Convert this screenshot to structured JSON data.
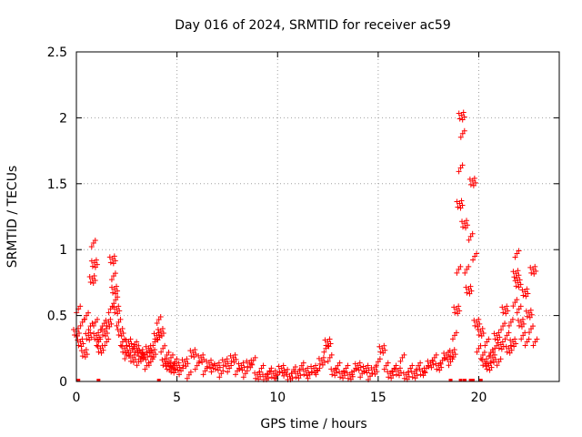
{
  "chart_data": {
    "type": "scatter",
    "title": "Day 016 of 2024, SRMTID for receiver ac59",
    "xlabel": "GPS time / hours",
    "ylabel": "SRMTID / TECUs",
    "xlim": [
      0,
      24
    ],
    "ylim": [
      0,
      2.5
    ],
    "x_ticks": [
      0,
      5,
      10,
      15,
      20
    ],
    "x_tick_labels": [
      "0",
      "5",
      "10",
      "15",
      "20"
    ],
    "y_ticks": [
      0,
      0.5,
      1,
      1.5,
      2,
      2.5
    ],
    "y_tick_labels": [
      "0",
      "0.5",
      "1",
      "1.5",
      "2",
      "2.5"
    ],
    "grid": true,
    "marker": "plus",
    "color": "#ff0000",
    "series": [
      {
        "name": "SRMTID",
        "x": [
          0.0,
          0.1,
          0.2,
          0.3,
          0.4,
          0.5,
          0.6,
          0.7,
          0.8,
          0.85,
          0.9,
          0.95,
          1.0,
          1.1,
          1.2,
          1.3,
          1.4,
          1.5,
          1.6,
          1.7,
          1.8,
          1.85,
          1.9,
          1.95,
          2.0,
          2.1,
          2.2,
          2.3,
          2.4,
          2.5,
          2.6,
          2.7,
          2.8,
          2.9,
          3.0,
          3.1,
          3.2,
          3.3,
          3.4,
          3.5,
          3.6,
          3.7,
          3.8,
          3.9,
          4.0,
          4.1,
          4.2,
          4.3,
          4.4,
          4.5,
          4.6,
          4.7,
          4.8,
          4.9,
          5.0,
          5.2,
          5.4,
          5.6,
          5.8,
          6.0,
          6.2,
          6.4,
          6.6,
          6.8,
          7.0,
          7.2,
          7.4,
          7.6,
          7.8,
          8.0,
          8.2,
          8.4,
          8.6,
          8.8,
          9.0,
          9.2,
          9.4,
          9.6,
          9.8,
          10.0,
          10.2,
          10.4,
          10.6,
          10.8,
          11.0,
          11.2,
          11.4,
          11.6,
          11.8,
          12.0,
          12.2,
          12.4,
          12.5,
          12.6,
          12.8,
          13.0,
          13.2,
          13.4,
          13.6,
          13.8,
          14.0,
          14.2,
          14.4,
          14.6,
          14.8,
          15.0,
          15.2,
          15.4,
          15.6,
          15.8,
          16.0,
          16.2,
          16.4,
          16.6,
          16.8,
          17.0,
          17.2,
          17.4,
          17.6,
          17.8,
          18.0,
          18.2,
          18.4,
          18.6,
          18.7,
          18.8,
          18.9,
          19.0,
          19.05,
          19.1,
          19.15,
          19.2,
          19.3,
          19.4,
          19.5,
          19.6,
          19.7,
          19.8,
          19.9,
          20.0,
          20.1,
          20.2,
          20.3,
          20.4,
          20.5,
          20.6,
          20.7,
          20.8,
          20.9,
          21.0,
          21.1,
          21.2,
          21.3,
          21.4,
          21.5,
          21.6,
          21.7,
          21.8,
          21.85,
          21.9,
          21.95,
          22.0,
          22.1,
          22.2,
          22.3,
          22.4,
          22.5,
          22.6,
          22.7,
          22.8
        ],
        "y": [
          0.38,
          0.55,
          0.3,
          0.45,
          0.22,
          0.5,
          0.35,
          0.42,
          0.78,
          1.05,
          0.9,
          0.45,
          0.35,
          0.3,
          0.25,
          0.42,
          0.38,
          0.3,
          0.45,
          0.55,
          0.93,
          0.8,
          0.7,
          0.62,
          0.55,
          0.45,
          0.38,
          0.3,
          0.25,
          0.2,
          0.3,
          0.22,
          0.18,
          0.28,
          0.25,
          0.15,
          0.22,
          0.18,
          0.2,
          0.12,
          0.25,
          0.15,
          0.22,
          0.3,
          0.35,
          0.47,
          0.38,
          0.25,
          0.15,
          0.2,
          0.12,
          0.18,
          0.1,
          0.15,
          0.12,
          0.08,
          0.15,
          0.05,
          0.22,
          0.12,
          0.18,
          0.08,
          0.14,
          0.1,
          0.12,
          0.06,
          0.15,
          0.1,
          0.18,
          0.08,
          0.12,
          0.06,
          0.14,
          0.16,
          0.05,
          0.1,
          0.04,
          0.08,
          0.06,
          0.05,
          0.1,
          0.07,
          0.04,
          0.09,
          0.06,
          0.12,
          0.08,
          0.05,
          0.1,
          0.08,
          0.16,
          0.25,
          0.3,
          0.18,
          0.08,
          0.12,
          0.06,
          0.1,
          0.05,
          0.08,
          0.12,
          0.06,
          0.1,
          0.04,
          0.09,
          0.15,
          0.25,
          0.12,
          0.06,
          0.1,
          0.08,
          0.18,
          0.05,
          0.1,
          0.06,
          0.12,
          0.08,
          0.1,
          0.14,
          0.18,
          0.12,
          0.16,
          0.2,
          0.15,
          0.22,
          0.35,
          0.55,
          0.85,
          1.35,
          1.62,
          2.02,
          1.88,
          1.2,
          0.85,
          0.7,
          1.1,
          1.52,
          0.95,
          0.45,
          0.25,
          0.38,
          0.2,
          0.15,
          0.3,
          0.12,
          0.22,
          0.18,
          0.25,
          0.35,
          0.15,
          0.28,
          0.42,
          0.55,
          0.35,
          0.25,
          0.45,
          0.3,
          0.6,
          0.82,
          0.97,
          0.75,
          0.55,
          0.45,
          0.35,
          0.68,
          0.3,
          0.52,
          0.4,
          0.85,
          0.3
        ]
      }
    ]
  }
}
